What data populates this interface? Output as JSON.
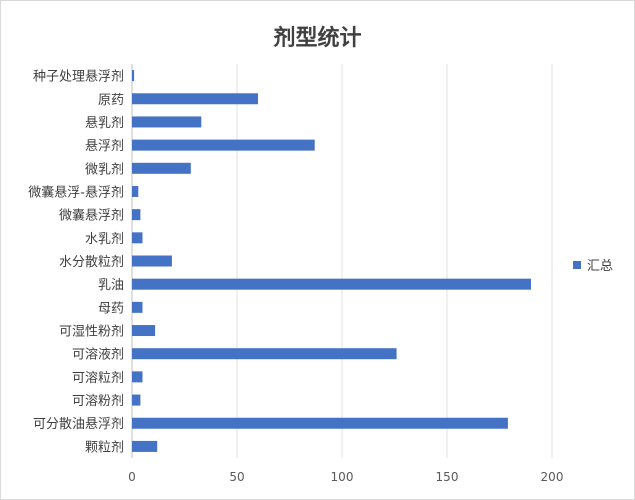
{
  "chart_data": {
    "type": "bar",
    "orientation": "horizontal",
    "title": "剂型统计",
    "categories": [
      "种子处理悬浮剂",
      "原药",
      "悬乳剂",
      "悬浮剂",
      "微乳剂",
      "微囊悬浮-悬浮剂",
      "微囊悬浮剂",
      "水乳剂",
      "水分散粒剂",
      "乳油",
      "母药",
      "可湿性粉剂",
      "可溶液剂",
      "可溶粒剂",
      "可溶粉剂",
      "可分散油悬浮剂",
      "颗粒剂"
    ],
    "series": [
      {
        "name": "汇总",
        "values": [
          1,
          60,
          33,
          87,
          28,
          3,
          4,
          5,
          19,
          190,
          5,
          11,
          126,
          5,
          4,
          179,
          12
        ],
        "color": "#4472c4"
      }
    ],
    "xlim": [
      0,
      200
    ],
    "xticks": [
      0,
      50,
      100,
      150,
      200
    ],
    "grid": true,
    "legend": "right"
  }
}
